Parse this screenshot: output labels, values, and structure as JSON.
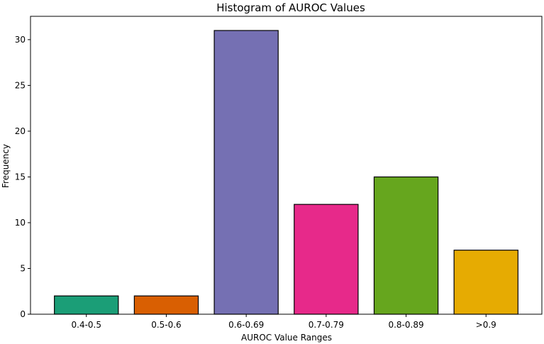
{
  "chart_data": {
    "type": "bar",
    "title": "Histogram of AUROC Values",
    "xlabel": "AUROC Value Ranges",
    "ylabel": "Frequency",
    "categories": [
      "0.4-0.5",
      "0.5-0.6",
      "0.6-0.69",
      "0.7-0.79",
      "0.8-0.89",
      ">0.9"
    ],
    "values": [
      2,
      2,
      31,
      12,
      15,
      7
    ],
    "colors": [
      "#1b9e77",
      "#d95f02",
      "#7570b3",
      "#e7298a",
      "#66a61e",
      "#e6ab02"
    ],
    "ylim": [
      0,
      32.55
    ],
    "yticks": [
      0,
      5,
      10,
      15,
      20,
      25,
      30
    ],
    "grid": false,
    "legend": "none"
  }
}
